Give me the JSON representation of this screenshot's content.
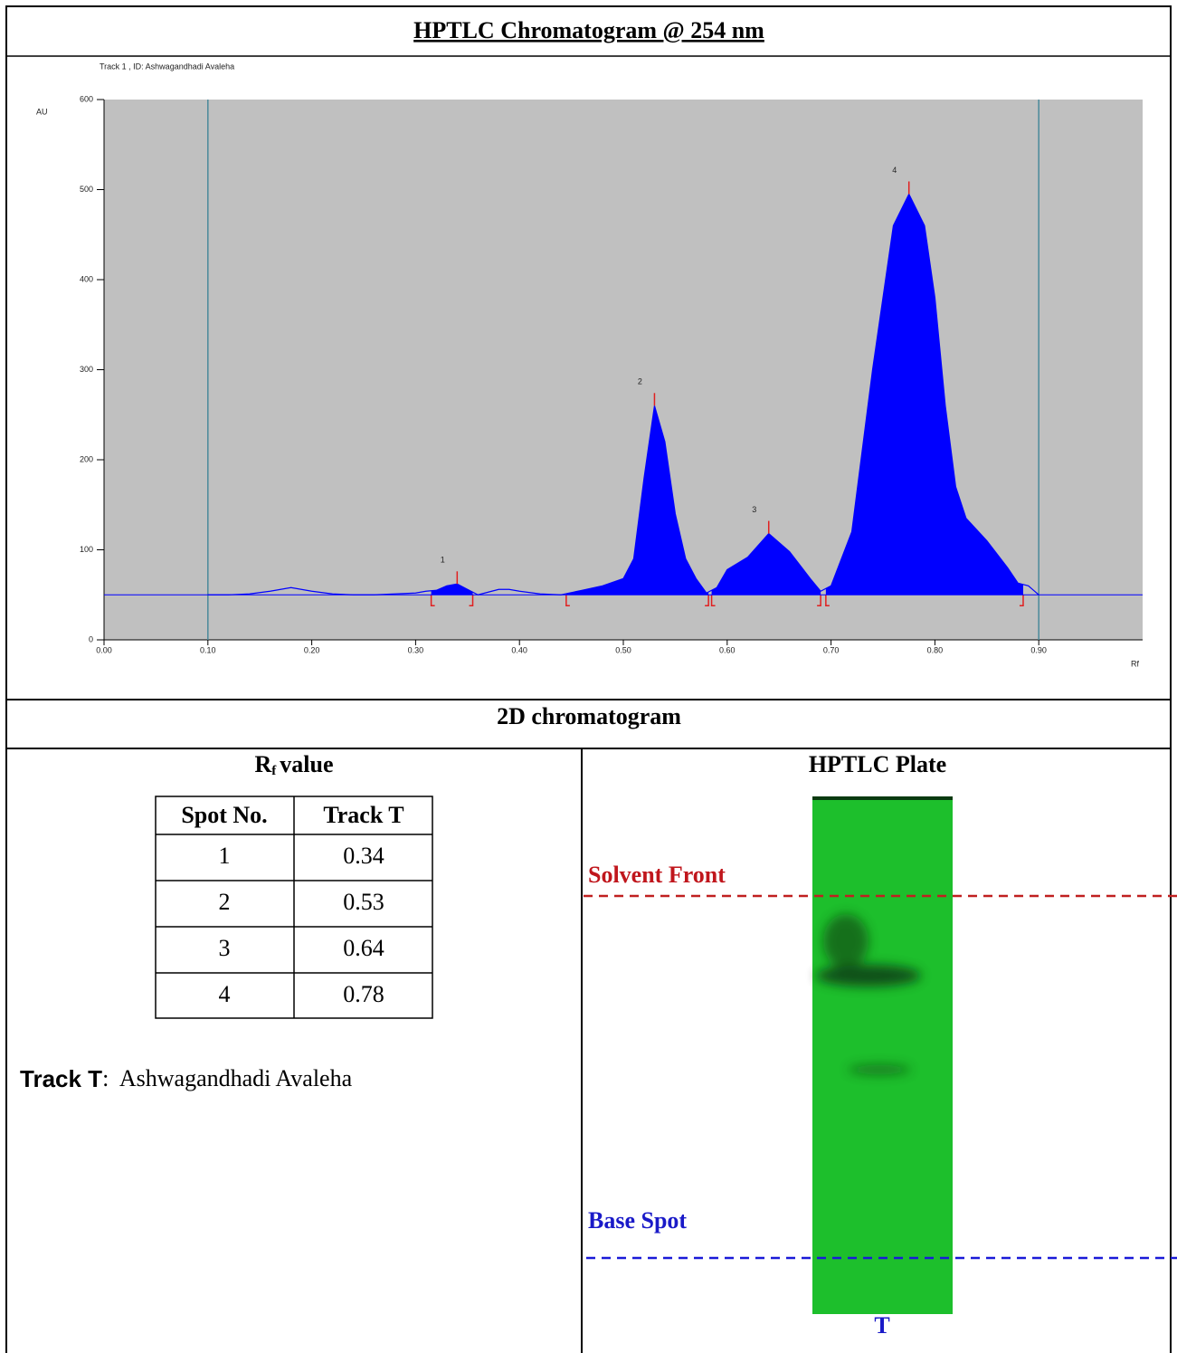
{
  "chart_data": {
    "type": "line",
    "title": "HPTLC Chromatogram @ 254 nm",
    "subtitle": "Track  1 , ID: Ashwagandhadi Avaleha",
    "ylabel": "AU",
    "xlabel": "Rf",
    "x": [
      0.1,
      0.12,
      0.14,
      0.16,
      0.18,
      0.2,
      0.22,
      0.24,
      0.26,
      0.28,
      0.3,
      0.31,
      0.32,
      0.33,
      0.34,
      0.35,
      0.36,
      0.37,
      0.38,
      0.39,
      0.4,
      0.42,
      0.44,
      0.46,
      0.48,
      0.5,
      0.51,
      0.52,
      0.53,
      0.54,
      0.55,
      0.56,
      0.57,
      0.58,
      0.59,
      0.6,
      0.62,
      0.64,
      0.66,
      0.68,
      0.69,
      0.7,
      0.72,
      0.74,
      0.76,
      0.775,
      0.79,
      0.8,
      0.81,
      0.82,
      0.83,
      0.85,
      0.87,
      0.88,
      0.89,
      0.9
    ],
    "series": [
      {
        "color": "#0000ff",
        "values": [
          50,
          50,
          51,
          54,
          58,
          54,
          51,
          50,
          50,
          51,
          52,
          54,
          55,
          60,
          62,
          56,
          50,
          53,
          56,
          56,
          54,
          51,
          50,
          55,
          60,
          68,
          90,
          180,
          260,
          220,
          140,
          90,
          68,
          52,
          58,
          78,
          92,
          118,
          98,
          68,
          54,
          60,
          120,
          300,
          460,
          495,
          460,
          380,
          260,
          170,
          135,
          110,
          80,
          63,
          60,
          50
        ]
      }
    ],
    "xlim": [
      0,
      1
    ],
    "ylim": [
      0,
      600
    ],
    "xticks": [
      {
        "value": 0,
        "label": "0.00"
      },
      {
        "value": 0.1,
        "label": "0.10"
      },
      {
        "value": 0.2,
        "label": "0.20"
      },
      {
        "value": 0.3,
        "label": "0.30"
      },
      {
        "value": 0.4,
        "label": "0.40"
      },
      {
        "value": 0.5,
        "label": "0.50"
      },
      {
        "value": 0.6,
        "label": "0.60"
      },
      {
        "value": 0.7,
        "label": "0.70"
      },
      {
        "value": 0.8,
        "label": "0.80"
      },
      {
        "value": 0.9,
        "label": "0.90"
      }
    ],
    "yticks": [
      0,
      100,
      200,
      300,
      400,
      500,
      600
    ],
    "baseline": 50,
    "track_lines": [
      0.1,
      0.9
    ],
    "integration": [
      [
        0.315,
        0.355
      ],
      [
        0.445,
        0.582
      ],
      [
        0.585,
        0.69
      ],
      [
        0.695,
        0.885
      ]
    ],
    "peaks": [
      {
        "label": "1",
        "x": 0.34,
        "y": 62
      },
      {
        "label": "2",
        "x": 0.53,
        "y": 260
      },
      {
        "label": "3",
        "x": 0.64,
        "y": 118
      },
      {
        "label": "4",
        "x": 0.775,
        "y": 495
      }
    ]
  },
  "section_title": "2D chromatogram",
  "rf_table": {
    "title": [
      "R",
      "f",
      "value"
    ],
    "header": [
      "Spot No.",
      "Track T"
    ],
    "rows": [
      [
        1,
        0.34
      ],
      [
        2,
        0.53
      ],
      [
        3,
        0.64
      ],
      [
        4,
        0.78
      ]
    ]
  },
  "track_note": {
    "label": "Track T",
    "text": ":  Ashwagandhadi Avaleha"
  },
  "plate": {
    "title": "HPTLC Plate",
    "solvent_front": "Solvent Front",
    "base_spot": "Base Spot",
    "track": "T"
  }
}
